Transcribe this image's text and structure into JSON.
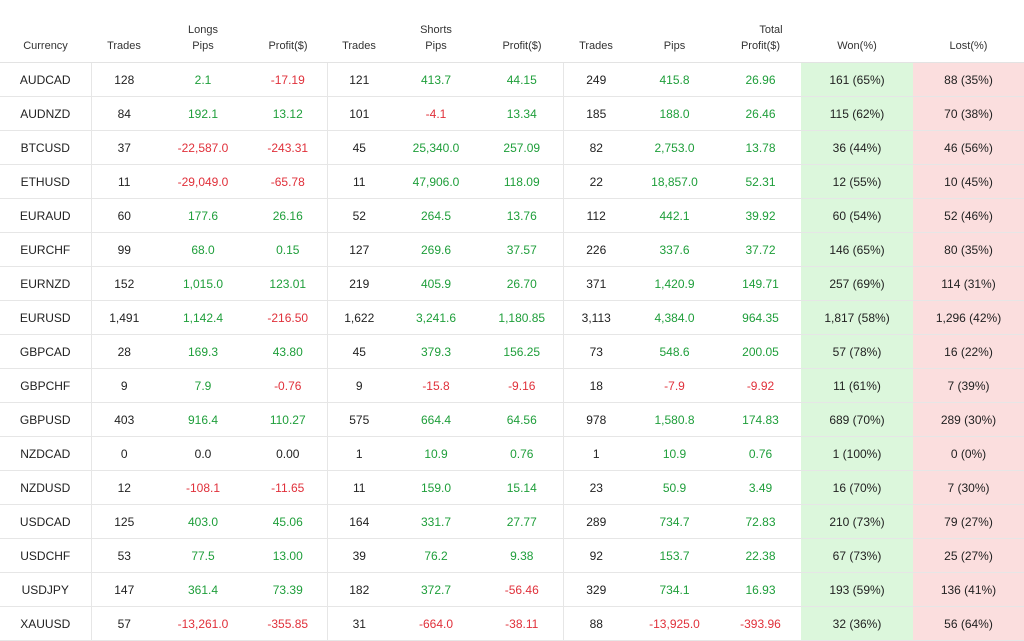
{
  "colors": {
    "positive": "#1e9e3a",
    "negative": "#e0303a",
    "won_bg": "#dcf7dc",
    "lost_bg": "#fbdede"
  },
  "groups": {
    "longs": "Longs",
    "shorts": "Shorts",
    "total": "Total"
  },
  "columns": [
    "Currency",
    "Trades",
    "Pips",
    "Profit($)",
    "Trades",
    "Pips",
    "Profit($)",
    "Trades",
    "Pips",
    "Profit($)",
    "Won(%)",
    "Lost(%)"
  ],
  "rows": [
    {
      "cur": "AUDCAD",
      "lt": "128",
      "lp": "2.1",
      "lpr": "-17.19",
      "st": "121",
      "sp": "413.7",
      "spr": "44.15",
      "tt": "249",
      "tp": "415.8",
      "tpr": "26.96",
      "won": "161 (65%)",
      "lost": "88 (35%)"
    },
    {
      "cur": "AUDNZD",
      "lt": "84",
      "lp": "192.1",
      "lpr": "13.12",
      "st": "101",
      "sp": "-4.1",
      "spr": "13.34",
      "tt": "185",
      "tp": "188.0",
      "tpr": "26.46",
      "won": "115 (62%)",
      "lost": "70 (38%)"
    },
    {
      "cur": "BTCUSD",
      "lt": "37",
      "lp": "-22,587.0",
      "lpr": "-243.31",
      "st": "45",
      "sp": "25,340.0",
      "spr": "257.09",
      "tt": "82",
      "tp": "2,753.0",
      "tpr": "13.78",
      "won": "36 (44%)",
      "lost": "46 (56%)"
    },
    {
      "cur": "ETHUSD",
      "lt": "11",
      "lp": "-29,049.0",
      "lpr": "-65.78",
      "st": "11",
      "sp": "47,906.0",
      "spr": "118.09",
      "tt": "22",
      "tp": "18,857.0",
      "tpr": "52.31",
      "won": "12 (55%)",
      "lost": "10 (45%)"
    },
    {
      "cur": "EURAUD",
      "lt": "60",
      "lp": "177.6",
      "lpr": "26.16",
      "st": "52",
      "sp": "264.5",
      "spr": "13.76",
      "tt": "112",
      "tp": "442.1",
      "tpr": "39.92",
      "won": "60 (54%)",
      "lost": "52 (46%)"
    },
    {
      "cur": "EURCHF",
      "lt": "99",
      "lp": "68.0",
      "lpr": "0.15",
      "st": "127",
      "sp": "269.6",
      "spr": "37.57",
      "tt": "226",
      "tp": "337.6",
      "tpr": "37.72",
      "won": "146 (65%)",
      "lost": "80 (35%)"
    },
    {
      "cur": "EURNZD",
      "lt": "152",
      "lp": "1,015.0",
      "lpr": "123.01",
      "st": "219",
      "sp": "405.9",
      "spr": "26.70",
      "tt": "371",
      "tp": "1,420.9",
      "tpr": "149.71",
      "won": "257 (69%)",
      "lost": "114 (31%)"
    },
    {
      "cur": "EURUSD",
      "lt": "1,491",
      "lp": "1,142.4",
      "lpr": "-216.50",
      "st": "1,622",
      "sp": "3,241.6",
      "spr": "1,180.85",
      "tt": "3,113",
      "tp": "4,384.0",
      "tpr": "964.35",
      "won": "1,817 (58%)",
      "lost": "1,296 (42%)"
    },
    {
      "cur": "GBPCAD",
      "lt": "28",
      "lp": "169.3",
      "lpr": "43.80",
      "st": "45",
      "sp": "379.3",
      "spr": "156.25",
      "tt": "73",
      "tp": "548.6",
      "tpr": "200.05",
      "won": "57 (78%)",
      "lost": "16 (22%)"
    },
    {
      "cur": "GBPCHF",
      "lt": "9",
      "lp": "7.9",
      "lpr": "-0.76",
      "st": "9",
      "sp": "-15.8",
      "spr": "-9.16",
      "tt": "18",
      "tp": "-7.9",
      "tpr": "-9.92",
      "won": "11 (61%)",
      "lost": "7 (39%)"
    },
    {
      "cur": "GBPUSD",
      "lt": "403",
      "lp": "916.4",
      "lpr": "110.27",
      "st": "575",
      "sp": "664.4",
      "spr": "64.56",
      "tt": "978",
      "tp": "1,580.8",
      "tpr": "174.83",
      "won": "689 (70%)",
      "lost": "289 (30%)"
    },
    {
      "cur": "NZDCAD",
      "lt": "0",
      "lp": "0.0",
      "lpr": "0.00",
      "st": "1",
      "sp": "10.9",
      "spr": "0.76",
      "tt": "1",
      "tp": "10.9",
      "tpr": "0.76",
      "won": "1 (100%)",
      "lost": "0 (0%)"
    },
    {
      "cur": "NZDUSD",
      "lt": "12",
      "lp": "-108.1",
      "lpr": "-11.65",
      "st": "11",
      "sp": "159.0",
      "spr": "15.14",
      "tt": "23",
      "tp": "50.9",
      "tpr": "3.49",
      "won": "16 (70%)",
      "lost": "7 (30%)"
    },
    {
      "cur": "USDCAD",
      "lt": "125",
      "lp": "403.0",
      "lpr": "45.06",
      "st": "164",
      "sp": "331.7",
      "spr": "27.77",
      "tt": "289",
      "tp": "734.7",
      "tpr": "72.83",
      "won": "210 (73%)",
      "lost": "79 (27%)"
    },
    {
      "cur": "USDCHF",
      "lt": "53",
      "lp": "77.5",
      "lpr": "13.00",
      "st": "39",
      "sp": "76.2",
      "spr": "9.38",
      "tt": "92",
      "tp": "153.7",
      "tpr": "22.38",
      "won": "67 (73%)",
      "lost": "25 (27%)"
    },
    {
      "cur": "USDJPY",
      "lt": "147",
      "lp": "361.4",
      "lpr": "73.39",
      "st": "182",
      "sp": "372.7",
      "spr": "-56.46",
      "tt": "329",
      "tp": "734.1",
      "tpr": "16.93",
      "won": "193 (59%)",
      "lost": "136 (41%)"
    },
    {
      "cur": "XAUUSD",
      "lt": "57",
      "lp": "-13,261.0",
      "lpr": "-355.85",
      "st": "31",
      "sp": "-664.0",
      "spr": "-38.11",
      "tt": "88",
      "tp": "-13,925.0",
      "tpr": "-393.96",
      "won": "32 (36%)",
      "lost": "56 (64%)"
    }
  ]
}
